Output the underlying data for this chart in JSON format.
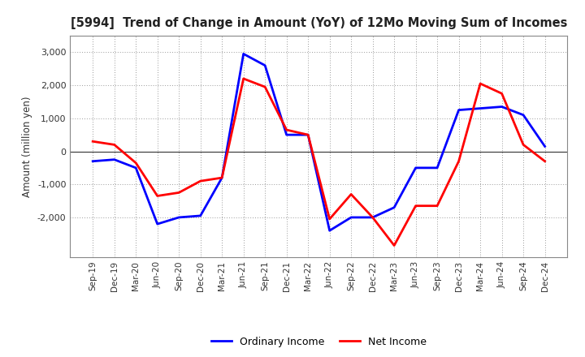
{
  "title": "[5994]  Trend of Change in Amount (YoY) of 12Mo Moving Sum of Incomes",
  "ylabel": "Amount (million yen)",
  "x_labels": [
    "Sep-19",
    "Dec-19",
    "Mar-20",
    "Jun-20",
    "Sep-20",
    "Dec-20",
    "Mar-21",
    "Jun-21",
    "Sep-21",
    "Dec-21",
    "Mar-22",
    "Jun-22",
    "Sep-22",
    "Dec-22",
    "Mar-23",
    "Jun-23",
    "Sep-23",
    "Dec-23",
    "Mar-24",
    "Jun-24",
    "Sep-24",
    "Dec-24"
  ],
  "ordinary_income": [
    -300,
    -250,
    -500,
    -2200,
    -2000,
    -1950,
    -800,
    2950,
    2600,
    500,
    500,
    -2400,
    -2000,
    -2000,
    -1700,
    -500,
    -500,
    1250,
    1300,
    1350,
    1100,
    150
  ],
  "net_income": [
    300,
    200,
    -350,
    -1350,
    -1250,
    -900,
    -800,
    2200,
    1950,
    650,
    500,
    -2050,
    -1300,
    -2000,
    -2850,
    -1650,
    -1650,
    -300,
    2050,
    1750,
    200,
    -300
  ],
  "ylim": [
    -3200,
    3500
  ],
  "yticks": [
    -2000,
    -1000,
    0,
    1000,
    2000,
    3000
  ],
  "ordinary_color": "#0000ff",
  "net_color": "#ff0000",
  "background_color": "#ffffff",
  "grid_color": "#999999",
  "line_width": 2.0,
  "legend_ordinary": "Ordinary Income",
  "legend_net": "Net Income"
}
